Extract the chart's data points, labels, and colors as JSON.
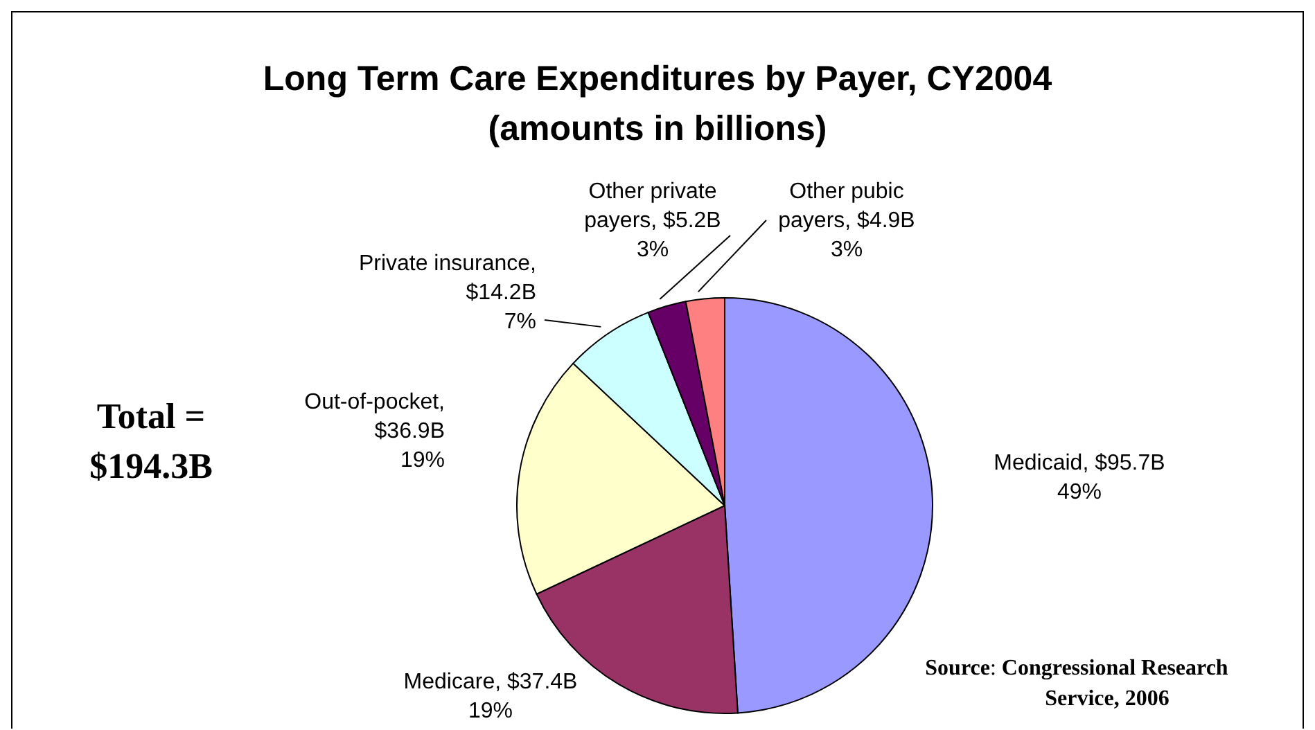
{
  "chart_data": {
    "type": "pie",
    "title": "Long Term Care Expenditures by Payer, CY2004\n(amounts in billions)",
    "categories": [
      "Medicaid, $95.7B",
      "Medicare, $37.4B",
      "Out-of-pocket, $36.9B",
      "Private insurance, $14.2B",
      "Other private payers, $5.2B",
      "Other pubic payers, $4.9B"
    ],
    "values": [
      49,
      19,
      19,
      7,
      3,
      3
    ],
    "colors": [
      "#9999ff",
      "#993366",
      "#ffffcc",
      "#ccffff",
      "#660066",
      "#ff8080"
    ],
    "value_labels": [
      "49%",
      "19%",
      "19%",
      "7%",
      "3%",
      "3%"
    ],
    "annotations": [
      "Total =\n$194.3B",
      "Source: Congressional Research Service, 2006"
    ]
  }
}
